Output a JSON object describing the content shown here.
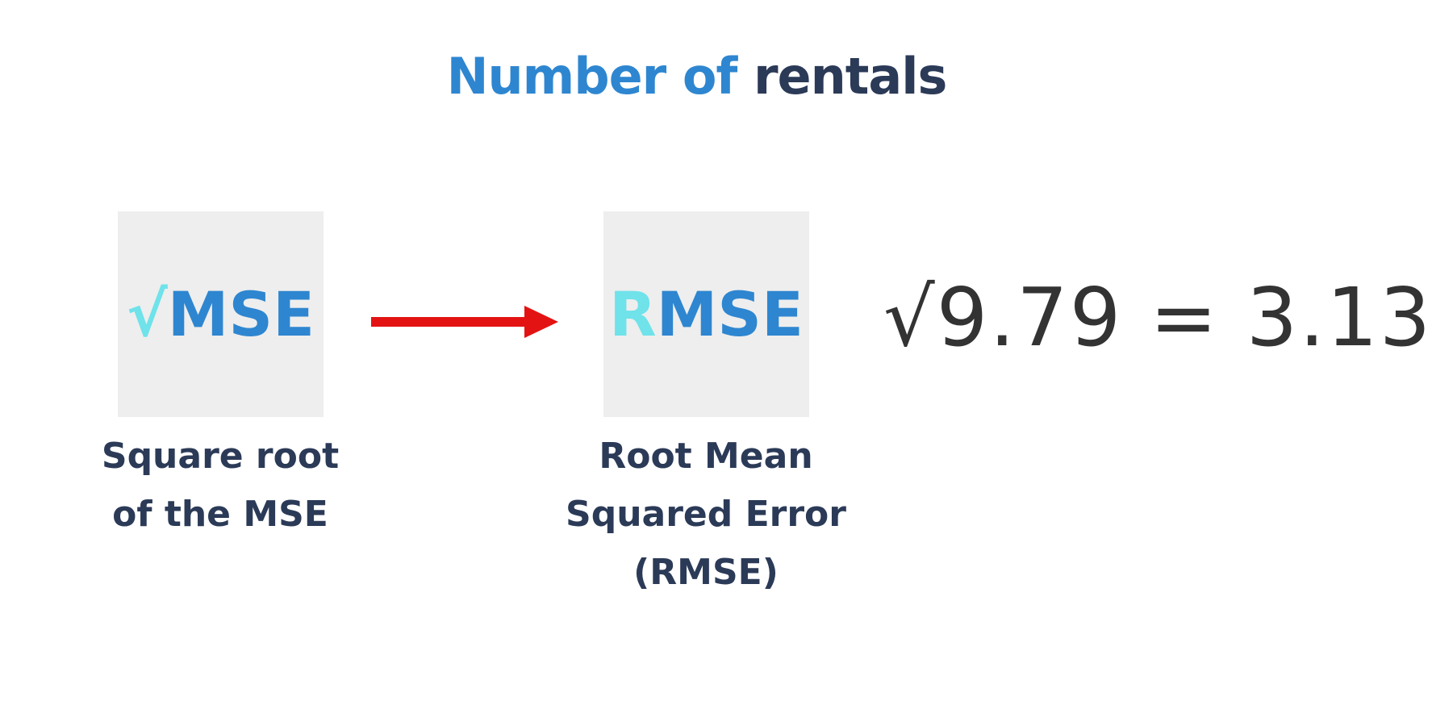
{
  "title": {
    "part1": "Number of",
    "part2": "rentals"
  },
  "left_tile": {
    "symbol": "√",
    "text": "MSE"
  },
  "right_tile": {
    "accent_letter": "R",
    "text": "MSE"
  },
  "left_caption": {
    "line1": "Square root",
    "line2": "of the MSE"
  },
  "right_caption": {
    "line1": "Root Mean",
    "line2": "Squared Error",
    "line3": "(RMSE)"
  },
  "equation": "√9.79 = 3.13",
  "colors": {
    "title_blue": "#2e86d0",
    "title_dark": "#2b3a57",
    "accent_cyan": "#6fe2ea",
    "arrow_red": "#e31313",
    "tile_bg": "#eeeeee",
    "equation_text": "#333333"
  }
}
